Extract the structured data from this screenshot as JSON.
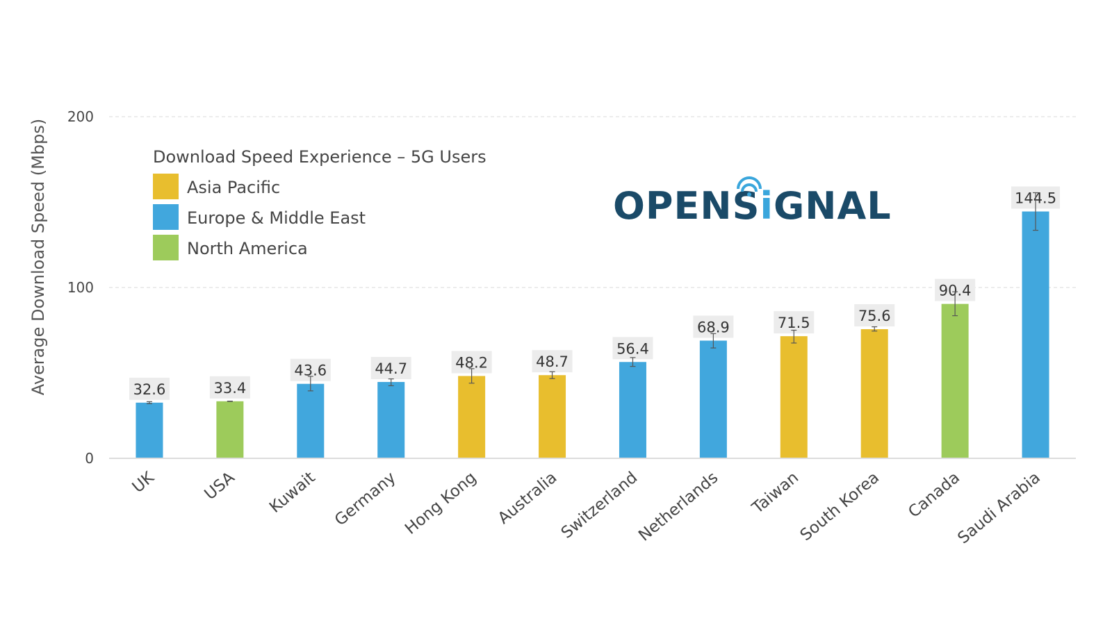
{
  "chart_data": {
    "type": "bar",
    "title": "Download Speed Experience – 5G Users",
    "xlabel": "",
    "ylabel": "Average Download Speed (Mbps)",
    "ylim": [
      0,
      200
    ],
    "yticks": [
      0,
      100,
      200
    ],
    "grid": true,
    "legend_position": "top-left",
    "categories": [
      "UK",
      "USA",
      "Kuwait",
      "Germany",
      "Hong Kong",
      "Australia",
      "Switzerland",
      "Netherlands",
      "Taiwan",
      "South Korea",
      "Canada",
      "Saudi Arabia"
    ],
    "values": [
      32.6,
      33.4,
      43.6,
      44.7,
      48.2,
      48.7,
      56.4,
      68.9,
      71.5,
      75.6,
      90.4,
      144.5
    ],
    "regions": [
      "Europe & Middle East",
      "North America",
      "Europe & Middle East",
      "Europe & Middle East",
      "Asia Pacific",
      "Asia Pacific",
      "Europe & Middle East",
      "Europe & Middle East",
      "Asia Pacific",
      "Asia Pacific",
      "North America",
      "Europe & Middle East"
    ],
    "error_bars": [
      [
        32.0,
        33.2
      ],
      [
        33.3,
        33.5
      ],
      [
        39.5,
        48.0
      ],
      [
        42.5,
        46.5
      ],
      [
        44.0,
        52.5
      ],
      [
        46.7,
        50.7
      ],
      [
        53.8,
        59.0
      ],
      [
        64.6,
        73.0
      ],
      [
        67.5,
        75.0
      ],
      [
        74.5,
        77.0
      ],
      [
        83.5,
        97.5
      ],
      [
        133.5,
        155.5
      ]
    ],
    "legend": [
      {
        "name": "Asia Pacific",
        "color": "#e8be2e"
      },
      {
        "name": "Europe & Middle East",
        "color": "#41a7dd"
      },
      {
        "name": "North America",
        "color": "#9dcb5b"
      }
    ]
  },
  "brand": {
    "logo_text_left": "OPENS",
    "logo_text_i": "i",
    "logo_text_right": "GNAL",
    "logo_color": "#1a4a68",
    "logo_accent": "#3aa6dc"
  }
}
